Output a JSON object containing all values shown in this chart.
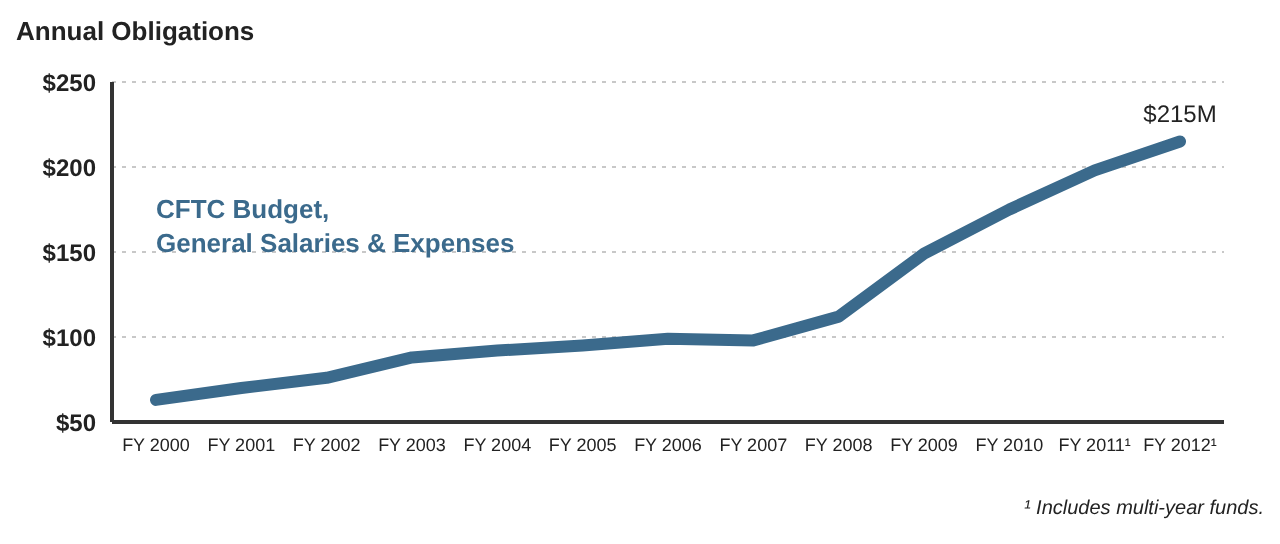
{
  "chart_data": {
    "type": "line",
    "title": "Annual Obligations",
    "categories": [
      "FY 2000",
      "FY 2001",
      "FY 2002",
      "FY 2003",
      "FY 2004",
      "FY 2005",
      "FY 2006",
      "FY 2007",
      "FY 2008",
      "FY 2009",
      "FY 2010",
      "FY 2011¹",
      "FY 2012¹"
    ],
    "series": [
      {
        "name": "CFTC Budget, General Salaries & Expenses",
        "color": "#3b6a8c",
        "values": [
          63,
          70,
          76,
          88,
          92,
          95,
          99,
          98,
          112,
          149,
          175,
          198,
          215
        ]
      }
    ],
    "ylim": [
      50,
      250
    ],
    "yticks": [
      {
        "value": 50,
        "label": "$50"
      },
      {
        "value": 100,
        "label": "$100"
      },
      {
        "value": 150,
        "label": "$150"
      },
      {
        "value": 200,
        "label": "$200"
      },
      {
        "value": 250,
        "label": "$250"
      }
    ],
    "grid": "y",
    "legend": false,
    "marker": "none",
    "line_style": "solid",
    "annotations": [
      {
        "text": "$215M",
        "x": "FY 2012¹",
        "y": 215
      },
      "¹ Includes multi-year funds."
    ]
  }
}
